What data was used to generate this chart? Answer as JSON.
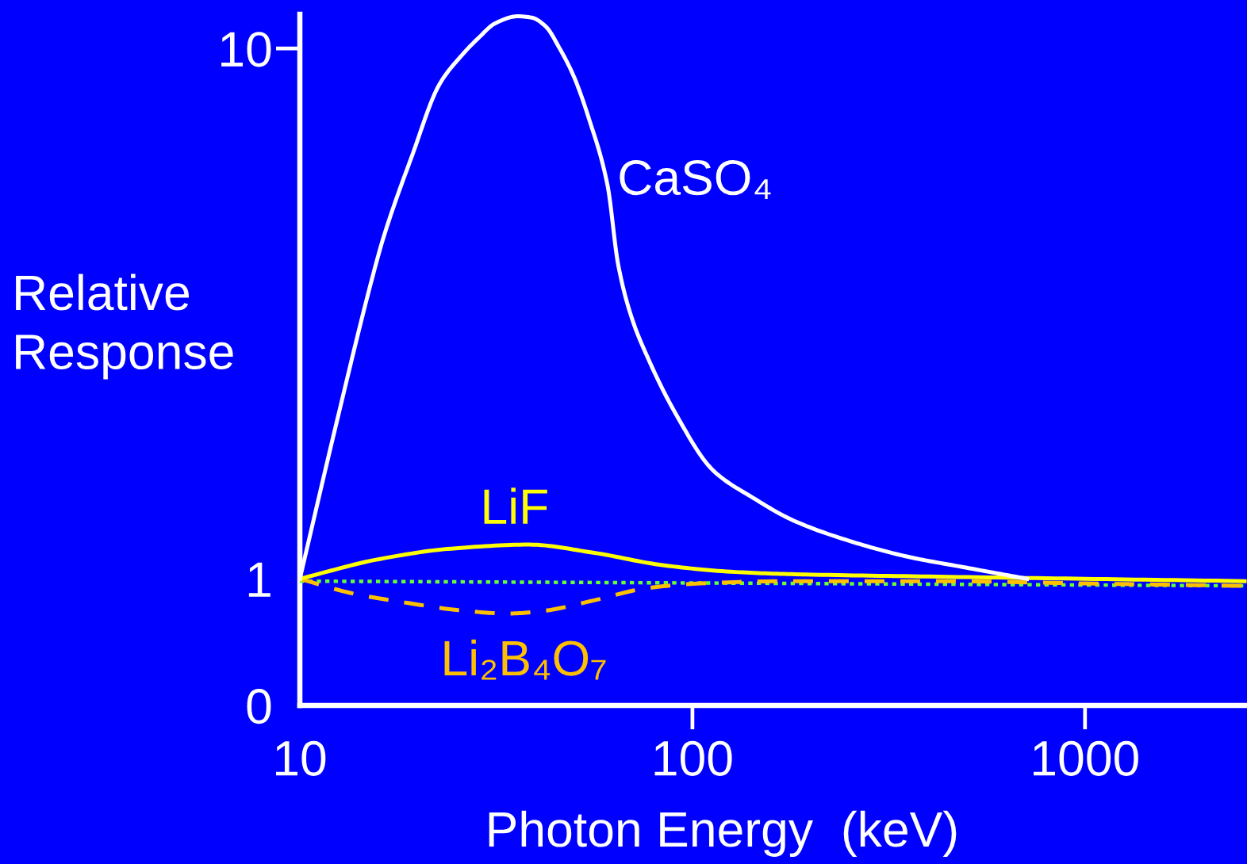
{
  "chart_data": {
    "type": "line",
    "xlabel": "Photon Energy  (keV)",
    "ylabel": "Relative\nResponse",
    "log": "xy",
    "xlim": [
      10,
      2550
    ],
    "ylim": [
      0,
      11.6
    ],
    "xticks": [
      10,
      100,
      1000
    ],
    "yticks": [
      0,
      1,
      10
    ],
    "series": [
      {
        "name": "CaSO₄",
        "color": "#ffffff",
        "line_style": "solid",
        "x": [
          10,
          12.3,
          15.3,
          16.3,
          19.3,
          22.7,
          25.7,
          28.6,
          31.5,
          35.9,
          39.0,
          42.3,
          45.9,
          49.8,
          54.6,
          60.8,
          64.7,
          70.0,
          76.8,
          89.6,
          113,
          143,
          180,
          250,
          355,
          497,
          712
        ],
        "values": [
          1,
          1.92,
          3.7,
          4.38,
          6.27,
          8.57,
          9.66,
          10.49,
          11.16,
          11.5,
          11.43,
          11.0,
          10.0,
          8.88,
          7.34,
          5.51,
          3.91,
          3.11,
          2.62,
          2.08,
          1.6,
          1.42,
          1.29,
          1.18,
          1.1,
          1.05,
          1.0
        ]
      },
      {
        "name": "LiF",
        "color": "#ffff00",
        "line_style": "solid",
        "x": [
          10,
          16,
          24.3,
          38.4,
          55.9,
          84.8,
          128.7,
          183,
          400,
          1000,
          2550
        ],
        "values": [
          1,
          1.09,
          1.14,
          1.16,
          1.12,
          1.06,
          1.03,
          1.02,
          1.01,
          1.0,
          0.99
        ]
      },
      {
        "name": "Li₂B₄O₇",
        "color": "#ffc000",
        "line_style": "dashed",
        "x": [
          10,
          13.5,
          18.9,
          26.4,
          33.9,
          41.7,
          55.9,
          76.4,
          104.5,
          176,
          427,
          1000,
          2550
        ],
        "values": [
          1,
          0.94,
          0.9,
          0.87,
          0.86,
          0.87,
          0.91,
          0.96,
          0.98,
          0.99,
          0.99,
          0.98,
          0.97
        ]
      },
      {
        "color": "#66ff33",
        "line_style": "dotted",
        "x": [
          10,
          183,
          2550
        ],
        "values": [
          0.99,
          0.98,
          0.97
        ]
      }
    ]
  }
}
